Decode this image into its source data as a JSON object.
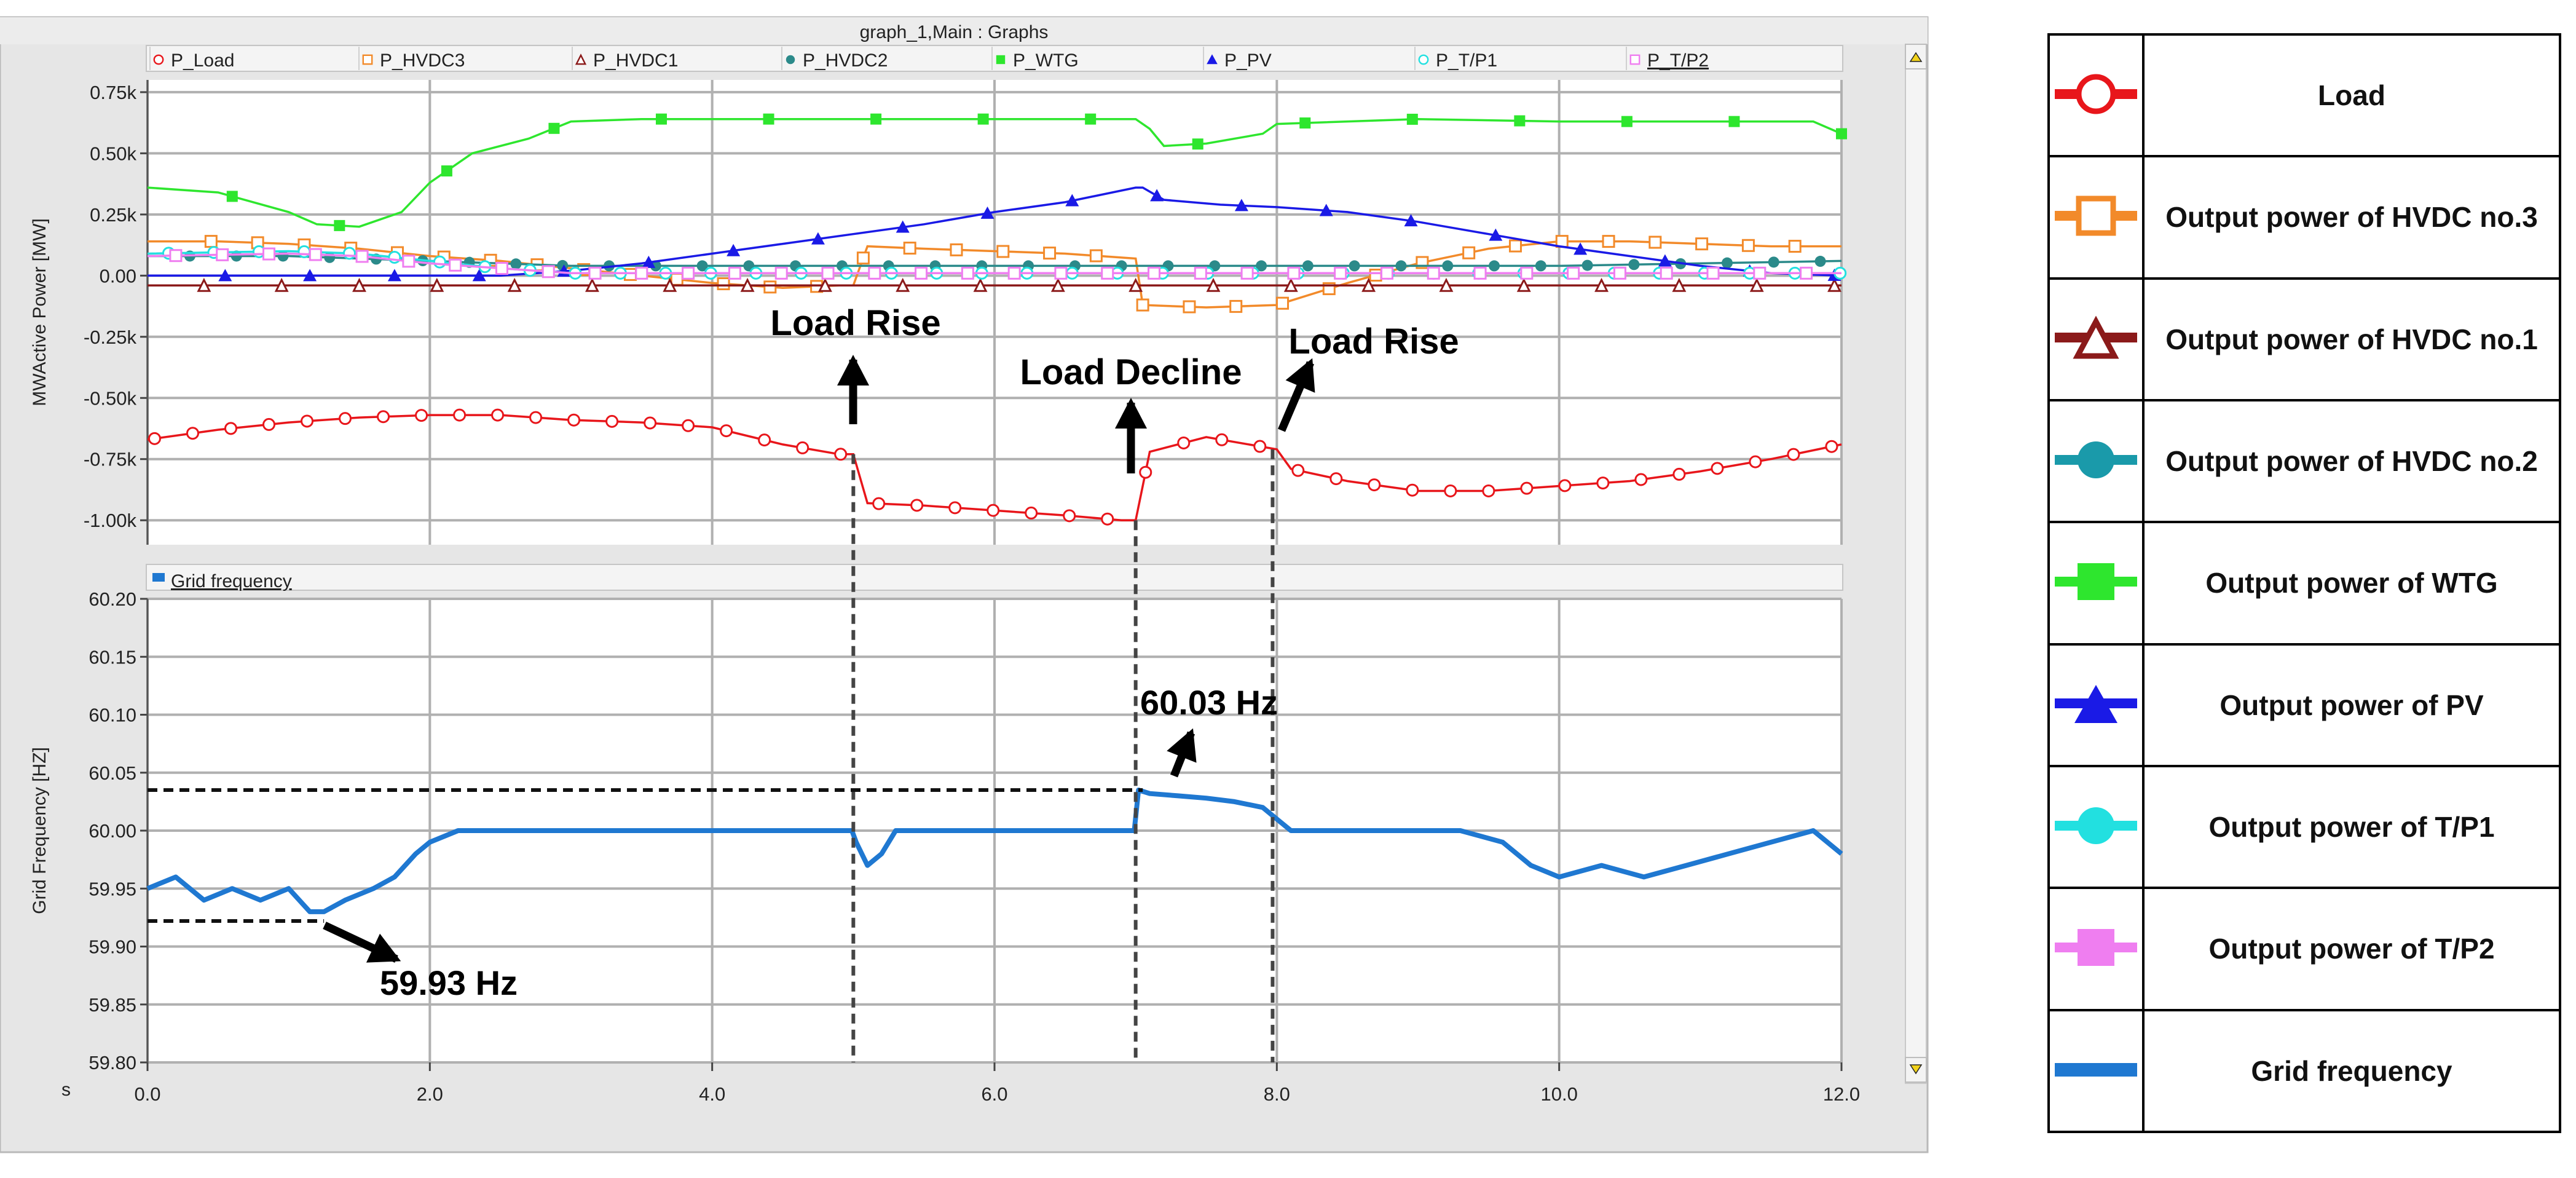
{
  "window": {
    "title": "graph_1,Main : Graphs",
    "scroll_up_icon": "triangle-up-icon",
    "scroll_down_icon": "triangle-down-icon"
  },
  "chart_data": [
    {
      "type": "line",
      "ylabel": "MWActive Power [MW]",
      "ylim": [
        -1.1,
        0.8
      ],
      "y_ticks": [
        0.75,
        0.5,
        0.25,
        0.0,
        -0.25,
        -0.5,
        -0.75,
        -1.0
      ],
      "y_tick_labels": [
        "0.75k",
        "0.50k",
        "0.25k",
        "0.00",
        "-0.25k",
        "-0.50k",
        "-0.75k",
        "-1.00k"
      ],
      "xlim": [
        0,
        12
      ],
      "grid": true,
      "legend_position": "top",
      "series": [
        {
          "name": "P_Load",
          "color": "#e8161b",
          "marker": "circle-open",
          "x": [
            0,
            0.5,
            1,
            1.5,
            2,
            2.5,
            3,
            3.5,
            4,
            4.5,
            4.9,
            5.0,
            5.1,
            5.5,
            6,
            6.5,
            6.9,
            7.0,
            7.1,
            7.5,
            8.0,
            8.1,
            8.5,
            9,
            9.5,
            10,
            10.5,
            11,
            11.5,
            12
          ],
          "y": [
            -0.67,
            -0.63,
            -0.6,
            -0.58,
            -0.57,
            -0.57,
            -0.59,
            -0.6,
            -0.62,
            -0.69,
            -0.73,
            -0.73,
            -0.93,
            -0.94,
            -0.96,
            -0.98,
            -1.0,
            -1.0,
            -0.72,
            -0.66,
            -0.71,
            -0.79,
            -0.84,
            -0.88,
            -0.88,
            -0.86,
            -0.84,
            -0.8,
            -0.75,
            -0.69
          ]
        },
        {
          "name": "P_HVDC3",
          "color": "#f28a2a",
          "marker": "square-open",
          "x": [
            0,
            0.5,
            1,
            1.5,
            2,
            2.5,
            3,
            3.5,
            4,
            4.5,
            4.9,
            5.0,
            5.1,
            5.5,
            6,
            6.5,
            7,
            7.05,
            7.5,
            8,
            8.5,
            9,
            9.5,
            10,
            10.5,
            11,
            11.5,
            12
          ],
          "y": [
            0.14,
            0.14,
            0.13,
            0.11,
            0.08,
            0.06,
            0.03,
            0.0,
            -0.03,
            -0.05,
            -0.04,
            -0.04,
            0.12,
            0.11,
            0.1,
            0.09,
            0.07,
            -0.12,
            -0.13,
            -0.12,
            -0.03,
            0.05,
            0.11,
            0.14,
            0.14,
            0.13,
            0.12,
            0.12
          ]
        },
        {
          "name": "P_HVDC1",
          "color": "#8b1a1a",
          "marker": "triangle-open",
          "x": [
            0,
            12
          ],
          "y": [
            -0.04,
            -0.04
          ]
        },
        {
          "name": "P_HVDC2",
          "color": "#2b8a8a",
          "marker": "circle-filled",
          "x": [
            0,
            1,
            2,
            3,
            4,
            5,
            6,
            7,
            8,
            9,
            10,
            11,
            12
          ],
          "y": [
            0.08,
            0.08,
            0.06,
            0.04,
            0.04,
            0.04,
            0.04,
            0.04,
            0.04,
            0.04,
            0.04,
            0.05,
            0.06
          ]
        },
        {
          "name": "P_WTG",
          "color": "#2ee62e",
          "marker": "square-filled",
          "x": [
            0,
            0.5,
            1,
            1.2,
            1.5,
            1.8,
            2,
            2.3,
            2.7,
            3,
            3.5,
            4,
            5,
            6,
            7,
            7.1,
            7.2,
            7.5,
            7.9,
            8,
            9,
            10,
            11,
            11.8,
            12
          ],
          "y": [
            0.36,
            0.34,
            0.26,
            0.21,
            0.2,
            0.26,
            0.38,
            0.5,
            0.56,
            0.63,
            0.64,
            0.64,
            0.64,
            0.64,
            0.64,
            0.6,
            0.53,
            0.54,
            0.58,
            0.62,
            0.64,
            0.63,
            0.63,
            0.63,
            0.58
          ]
        },
        {
          "name": "P_PV",
          "color": "#1a1ae6",
          "marker": "triangle-filled",
          "x": [
            0,
            1,
            2,
            2.5,
            3,
            3.5,
            4,
            4.5,
            5,
            5.5,
            6,
            6.5,
            7,
            7.05,
            7.2,
            7.6,
            8,
            8.5,
            9,
            9.5,
            10,
            10.5,
            11,
            11.5,
            12
          ],
          "y": [
            0.0,
            0.0,
            0.0,
            0.0,
            0.02,
            0.05,
            0.09,
            0.13,
            0.17,
            0.21,
            0.26,
            0.3,
            0.36,
            0.36,
            0.31,
            0.29,
            0.28,
            0.26,
            0.22,
            0.17,
            0.12,
            0.08,
            0.04,
            0.01,
            0.0
          ]
        },
        {
          "name": "P_T/P1",
          "color": "#22e0e0",
          "marker": "circle-open",
          "x": [
            0,
            1,
            1.5,
            2,
            2.5,
            3,
            4,
            5,
            6,
            7,
            8,
            9,
            10,
            11,
            12
          ],
          "y": [
            0.09,
            0.1,
            0.09,
            0.06,
            0.03,
            0.01,
            0.01,
            0.01,
            0.01,
            0.01,
            0.01,
            0.01,
            0.01,
            0.01,
            0.01
          ]
        },
        {
          "name": "P_T/P2",
          "color": "#ef7ef0",
          "marker": "square-open",
          "x": [
            0,
            1,
            1.5,
            2,
            2.5,
            3,
            4,
            5,
            6,
            7,
            8,
            9,
            10,
            11,
            12
          ],
          "y": [
            0.08,
            0.09,
            0.08,
            0.05,
            0.03,
            0.01,
            0.01,
            0.01,
            0.01,
            0.01,
            0.01,
            0.01,
            0.01,
            0.01,
            0.01
          ]
        }
      ],
      "annotations": [
        "Load Rise",
        "Load Decline",
        "Load Rise"
      ]
    },
    {
      "type": "line",
      "ylabel": "Grid Frequency [HZ]",
      "ylim": [
        59.8,
        60.2
      ],
      "y_ticks": [
        60.2,
        60.15,
        60.1,
        60.05,
        60.0,
        59.95,
        59.9,
        59.85,
        59.8
      ],
      "y_tick_labels": [
        "60.20",
        "60.15",
        "60.10",
        "60.05",
        "60.00",
        "59.95",
        "59.90",
        "59.85",
        "59.80"
      ],
      "xlim": [
        0,
        12
      ],
      "x_ticks": [
        0,
        2,
        4,
        6,
        8,
        10,
        12
      ],
      "x_tick_labels": [
        "0.0",
        "2.0",
        "4.0",
        "6.0",
        "8.0",
        "10.0",
        "12.0"
      ],
      "xlabel": "s",
      "grid": true,
      "series": [
        {
          "name": "Grid frequency",
          "color": "#1f78d1",
          "x": [
            0,
            0.2,
            0.4,
            0.6,
            0.8,
            1.0,
            1.15,
            1.25,
            1.4,
            1.6,
            1.75,
            1.9,
            2.0,
            2.2,
            2.5,
            3,
            4,
            4.99,
            5.02,
            5.1,
            5.2,
            5.3,
            5.5,
            6,
            6.99,
            7.02,
            7.1,
            7.3,
            7.5,
            7.7,
            7.9,
            8.0,
            8.1,
            8.5,
            9,
            9.3,
            9.6,
            9.8,
            10,
            10.3,
            10.6,
            10.9,
            11.2,
            11.5,
            11.8,
            12
          ],
          "y": [
            59.95,
            59.96,
            59.94,
            59.95,
            59.94,
            59.95,
            59.93,
            59.93,
            59.94,
            59.95,
            59.96,
            59.98,
            59.99,
            60.0,
            60.0,
            60.0,
            60.0,
            60.0,
            59.99,
            59.97,
            59.98,
            60.0,
            60.0,
            60.0,
            60.0,
            60.035,
            60.032,
            60.03,
            60.028,
            60.025,
            60.02,
            60.01,
            60.0,
            60.0,
            60.0,
            60.0,
            59.99,
            59.97,
            59.96,
            59.97,
            59.96,
            59.97,
            59.98,
            59.99,
            60.0,
            59.98
          ]
        }
      ],
      "legend": [
        "Grid frequency"
      ],
      "annotations": [
        "60.03 Hz",
        "59.93 Hz"
      ]
    }
  ],
  "legend_table": [
    {
      "label": "Load",
      "color": "#e8161b",
      "icon": "circle-open-marker-icon"
    },
    {
      "label": "Output power of HVDC no.3",
      "color": "#f28a2a",
      "icon": "square-open-marker-icon"
    },
    {
      "label": "Output power of HVDC no.1",
      "color": "#8b1a1a",
      "icon": "triangle-open-marker-icon"
    },
    {
      "label": "Output power of HVDC no.2",
      "color": "#1a9aaa",
      "icon": "circle-filled-marker-icon"
    },
    {
      "label": "Output power of WTG",
      "color": "#2ee62e",
      "icon": "square-filled-marker-icon"
    },
    {
      "label": "Output power of PV",
      "color": "#1a1ae6",
      "icon": "triangle-filled-marker-icon"
    },
    {
      "label": "Output power of T/P1",
      "color": "#22e0e0",
      "icon": "circle-filled-marker-icon"
    },
    {
      "label": "Output power of T/P2",
      "color": "#ef7ef0",
      "icon": "square-filled-marker-icon"
    },
    {
      "label": "Grid frequency",
      "color": "#1f78d1",
      "icon": "line-marker-icon"
    }
  ]
}
